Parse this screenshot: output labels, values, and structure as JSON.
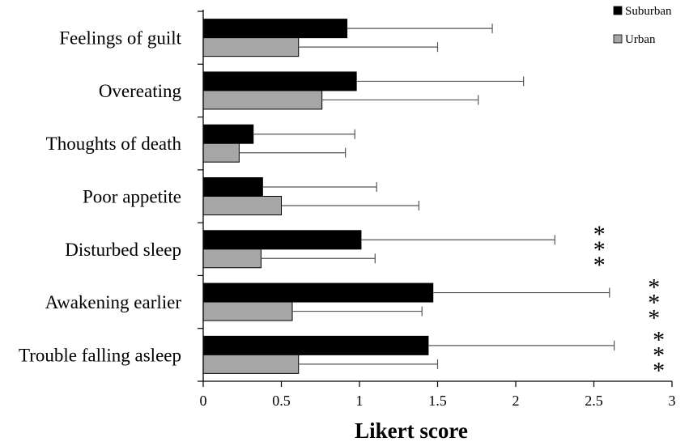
{
  "chart_data": {
    "type": "bar",
    "orientation": "horizontal",
    "categories": [
      "Feelings of guilt",
      "Overeating",
      "Thoughts of death",
      "Poor appetite",
      "Disturbed sleep",
      "Awakening earlier",
      "Trouble falling asleep"
    ],
    "series": [
      {
        "name": "Suburban",
        "color": "#000000",
        "values": [
          0.92,
          0.98,
          0.32,
          0.38,
          1.01,
          1.47,
          1.44
        ],
        "errors": [
          0.93,
          1.07,
          0.65,
          0.73,
          1.24,
          1.13,
          1.19
        ]
      },
      {
        "name": "Urban",
        "color": "#a6a6a6",
        "values": [
          0.61,
          0.76,
          0.23,
          0.5,
          0.37,
          0.57,
          0.61
        ],
        "errors": [
          0.89,
          1.0,
          0.68,
          0.88,
          0.73,
          0.83,
          0.89
        ]
      }
    ],
    "xlabel": "Likert score",
    "xlim": [
      0,
      3
    ],
    "xticks": [
      "0",
      "0.5",
      "1",
      "1.5",
      "2",
      "2.5",
      "3"
    ],
    "legend": "top-right",
    "grid": false,
    "annotations": [
      {
        "category": "Disturbed sleep",
        "text": "***"
      },
      {
        "category": "Awakening earlier",
        "text": "***"
      },
      {
        "category": "Trouble falling asleep",
        "text": "***"
      }
    ]
  }
}
